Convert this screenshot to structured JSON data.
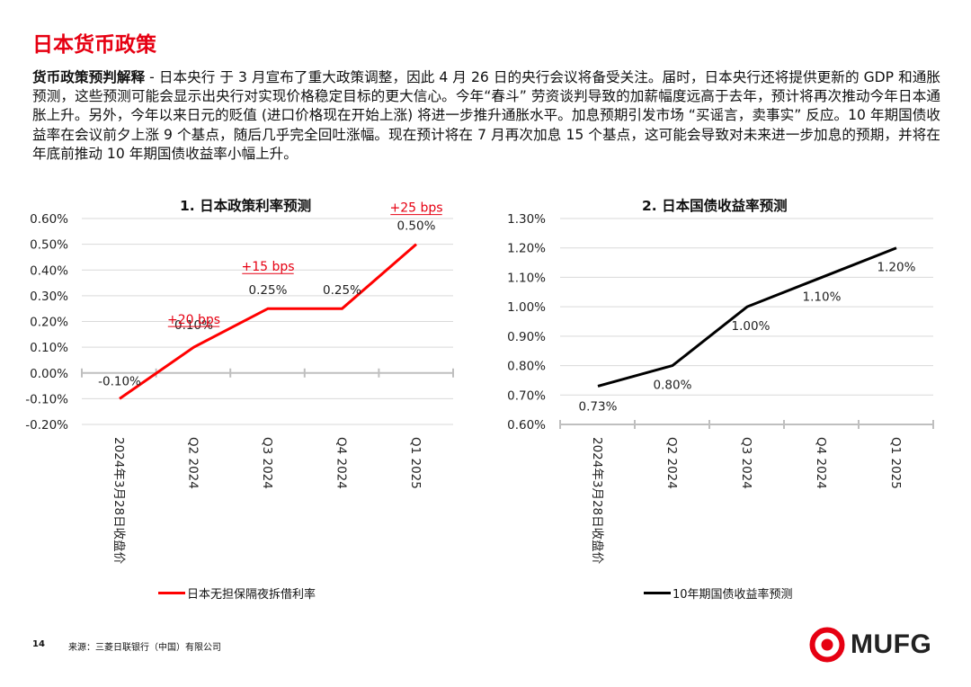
{
  "page": {
    "title": "日本货币政策",
    "paragraph_lead": "货币政策预判解释",
    "paragraph_body": " - 日本央行 于 3 月宣布了重大政策调整，因此 4 月 26 日的央行会议将备受关注。届时，日本央行还将提供更新的 GDP 和通胀预测，这些预测可能会显示出央行对实现价格稳定目标的更大信心。今年“春斗” 劳资谈判导致的加薪幅度远高于去年，预计将再次推动今年日本通胀上升。另外，今年以来日元的贬值 (进口价格现在开始上涨) 将进一步推升通胀水平。加息预期引发市场 “买谣言，卖事实” 反应。10 年期国债收益率在会议前夕上涨 9 个基点，随后几乎完全回吐涨幅。现在预计将在 7 月再次加息 15 个基点，这可能会导致对未来进一步加息的预期，并将在年底前推动 10 年期国债收益率小幅上升。",
    "footer_page": "14",
    "footer_source": "来源：三菱日联银行（中国）有限公司",
    "logo_text": "MUFG",
    "accent_color": "#e60012"
  },
  "chart_data": [
    {
      "type": "line",
      "title": "1. 日本政策利率预测",
      "categories": [
        "2024年3月28日收盘价",
        "Q2 2024",
        "Q3 2024",
        "Q4 2024",
        "Q1 2025"
      ],
      "series": [
        {
          "name": "日本无担保隔夜拆借利率",
          "values": [
            -0.1,
            0.1,
            0.25,
            0.25,
            0.5
          ],
          "color": "#ff0000"
        }
      ],
      "data_labels": [
        "-0.10%",
        "0.10%",
        "0.25%",
        "0.25%",
        "0.50%"
      ],
      "annotations": [
        {
          "text": "+20 bps",
          "category_index": 1,
          "value": 0.1
        },
        {
          "text": "+15 bps",
          "category_index": 2,
          "value": 0.25
        },
        {
          "text": "+25 bps",
          "category_index": 4,
          "value": 0.5
        }
      ],
      "annotation_color": "#e60012",
      "ylim": [
        -0.2,
        0.6
      ],
      "yticks": [
        -0.2,
        -0.1,
        0.0,
        0.1,
        0.2,
        0.3,
        0.4,
        0.5,
        0.6
      ],
      "ytick_labels": [
        "-0.20%",
        "-0.10%",
        "0.00%",
        "0.10%",
        "0.20%",
        "0.30%",
        "0.40%",
        "0.50%",
        "0.60%"
      ],
      "x_axis_at": 0.0,
      "grid": true,
      "legend": "bottom"
    },
    {
      "type": "line",
      "title": "2. 日本国债收益率预测",
      "categories": [
        "2024年3月28日收盘价",
        "Q2 2024",
        "Q3 2024",
        "Q4 2024",
        "Q1 2025"
      ],
      "series": [
        {
          "name": "10年期国债收益率预测",
          "values": [
            0.73,
            0.8,
            1.0,
            1.1,
            1.2
          ],
          "color": "#000000"
        }
      ],
      "data_labels": [
        "0.73%",
        "0.80%",
        "1.00%",
        "1.10%",
        "1.20%"
      ],
      "ylim": [
        0.6,
        1.3
      ],
      "yticks": [
        0.6,
        0.7,
        0.8,
        0.9,
        1.0,
        1.1,
        1.2,
        1.3
      ],
      "ytick_labels": [
        "0.60%",
        "0.70%",
        "0.80%",
        "0.90%",
        "1.00%",
        "1.10%",
        "1.20%",
        "1.30%"
      ],
      "x_axis_at": 0.6,
      "grid": true,
      "legend": "bottom"
    }
  ]
}
